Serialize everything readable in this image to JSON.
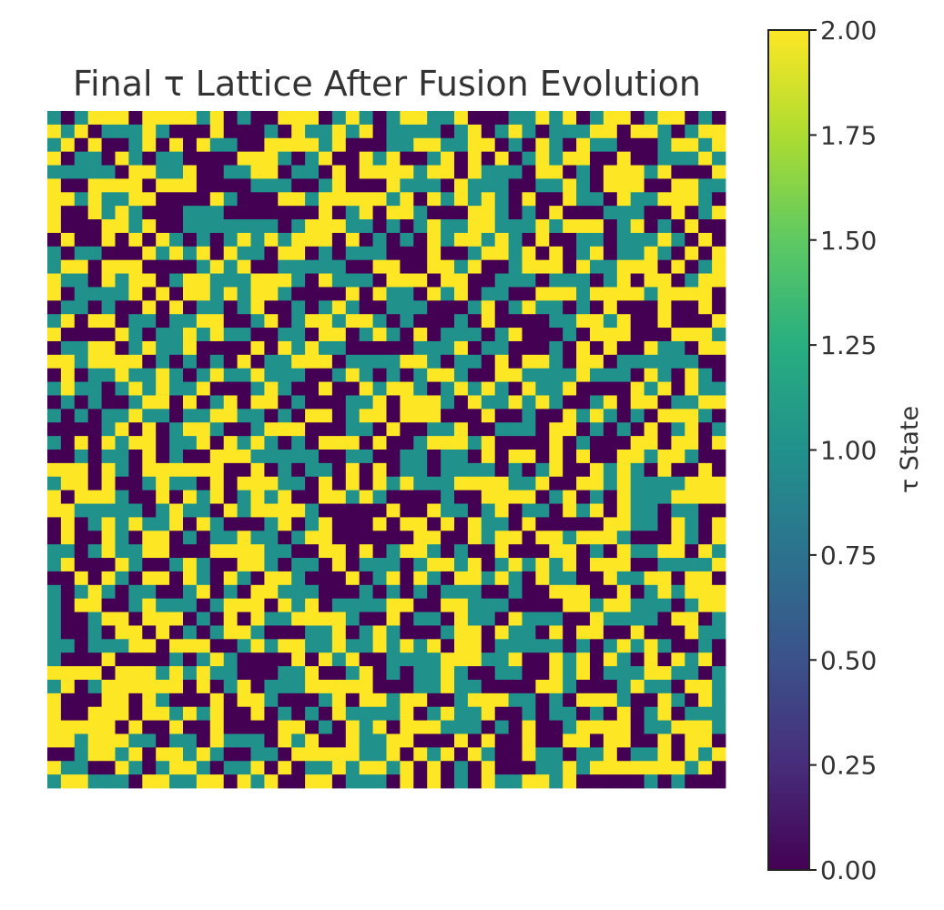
{
  "chart_data": {
    "type": "heatmap",
    "title": "Final τ Lattice After Fusion Evolution",
    "xlabel": "",
    "ylabel": "",
    "rows": 50,
    "cols": 50,
    "value_range": [
      0,
      2
    ],
    "states": [
      0,
      1,
      2
    ],
    "cell_values": "random lattice of discrete states 0, 1 and 2 (roughly equal proportions)",
    "colormap": "viridis",
    "state_colors": {
      "0": "#440154",
      "1": "#21918c",
      "2": "#fde725"
    },
    "colorbar": {
      "label": "τ State",
      "ticks": [
        "0.00",
        "0.25",
        "0.50",
        "0.75",
        "1.00",
        "1.25",
        "1.50",
        "1.75",
        "2.00"
      ],
      "range": [
        0,
        2
      ]
    },
    "grid": false,
    "axes_visible": false
  }
}
